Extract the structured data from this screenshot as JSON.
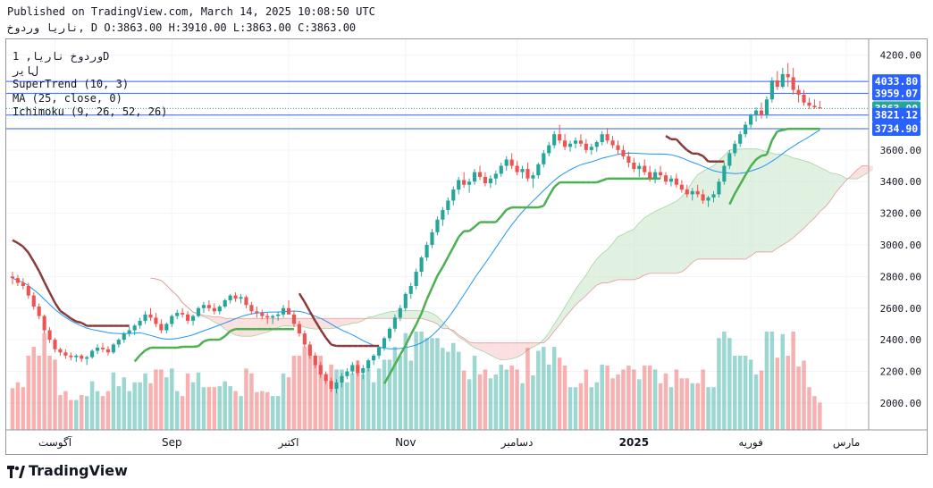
{
  "header": {
    "published": "Published on TradingView.com, March 14, 2025 10:08:50 UTC",
    "symbol_line": "ناریا  وردوخ, D O:3863.00 H:3910.00 L:3863.00 C:3863.00"
  },
  "legend": {
    "title": "وردوخ ناریا, 1D",
    "currency": "ﻝﺎﯾﺭ",
    "supertrend": "SuperTrend (10, 3)",
    "ma": "MA (25, close, 0)",
    "ichimoku": "Ichimoku (9, 26, 52, 26)"
  },
  "footer": {
    "brand": "TradingView"
  },
  "colors": {
    "up": "#26a69a",
    "down": "#ef5350",
    "supertrend_up": "#4caf50",
    "supertrend_down": "#8b3a3a",
    "ma": "#2196f3",
    "cloud_bull": "#c8e6c9",
    "cloud_bear": "#f8c7c7",
    "hline": "#2962ff"
  },
  "chart_data": {
    "type": "candlestick",
    "ylim": [
      1830,
      4300
    ],
    "y_ticks": [
      "2000.00",
      "2200.00",
      "2400.00",
      "2600.00",
      "2800.00",
      "3000.00",
      "3200.00",
      "3400.00",
      "3600.00",
      "3800.00",
      "4000.00",
      "4200.00"
    ],
    "x_labels": [
      {
        "label": "آگوست",
        "i": 8
      },
      {
        "label": "Sep",
        "i": 30
      },
      {
        "label": "اکتبر",
        "i": 52
      },
      {
        "label": "Nov",
        "i": 74
      },
      {
        "label": "دسامبر",
        "i": 95
      },
      {
        "label": "2025",
        "i": 117
      },
      {
        "label": "فوریه",
        "i": 139
      },
      {
        "label": "مارس",
        "i": 157
      }
    ],
    "price_labels": [
      {
        "value": 4033.8,
        "text": "4033.80",
        "bg": "#2962ff",
        "color": "#ffffff"
      },
      {
        "value": 3959.07,
        "text": "3959.07",
        "bg": "#2962ff",
        "color": "#ffffff"
      },
      {
        "value": 3863.0,
        "text": "3863.00",
        "bg": "#26a69a",
        "color": "#ffffff"
      },
      {
        "value": 3821.12,
        "text": "3821.12",
        "bg": "#2962ff",
        "color": "#ffffff"
      },
      {
        "value": 3734.9,
        "text": "3734.90",
        "bg": "#2962ff",
        "color": "#ffffff"
      }
    ],
    "hlines": [
      4033.8,
      3959.07,
      3821.12,
      3734.9
    ],
    "last_close": 3863.0,
    "candles": [
      [
        2800,
        2830,
        2750,
        2790
      ],
      [
        2790,
        2810,
        2740,
        2760
      ],
      [
        2760,
        2790,
        2720,
        2740
      ],
      [
        2740,
        2760,
        2660,
        2680
      ],
      [
        2680,
        2700,
        2590,
        2610
      ],
      [
        2610,
        2630,
        2530,
        2550
      ],
      [
        2550,
        2560,
        2440,
        2460
      ],
      [
        2460,
        2480,
        2380,
        2400
      ],
      [
        2400,
        2410,
        2320,
        2340
      ],
      [
        2340,
        2350,
        2300,
        2320
      ],
      [
        2320,
        2340,
        2280,
        2300
      ],
      [
        2300,
        2320,
        2270,
        2290
      ],
      [
        2290,
        2310,
        2260,
        2300
      ],
      [
        2300,
        2310,
        2260,
        2280
      ],
      [
        2280,
        2300,
        2240,
        2290
      ],
      [
        2290,
        2340,
        2280,
        2330
      ],
      [
        2330,
        2370,
        2310,
        2350
      ],
      [
        2350,
        2380,
        2320,
        2340
      ],
      [
        2340,
        2360,
        2300,
        2320
      ],
      [
        2320,
        2380,
        2310,
        2370
      ],
      [
        2370,
        2410,
        2350,
        2400
      ],
      [
        2400,
        2450,
        2380,
        2440
      ],
      [
        2440,
        2480,
        2420,
        2460
      ],
      [
        2460,
        2500,
        2430,
        2490
      ],
      [
        2490,
        2540,
        2470,
        2520
      ],
      [
        2520,
        2580,
        2500,
        2560
      ],
      [
        2560,
        2600,
        2520,
        2540
      ],
      [
        2540,
        2570,
        2480,
        2500
      ],
      [
        2500,
        2530,
        2440,
        2460
      ],
      [
        2460,
        2510,
        2440,
        2500
      ],
      [
        2500,
        2560,
        2480,
        2550
      ],
      [
        2550,
        2590,
        2530,
        2570
      ],
      [
        2570,
        2600,
        2540,
        2560
      ],
      [
        2560,
        2580,
        2500,
        2520
      ],
      [
        2520,
        2560,
        2490,
        2550
      ],
      [
        2550,
        2610,
        2540,
        2600
      ],
      [
        2600,
        2640,
        2570,
        2620
      ],
      [
        2620,
        2650,
        2580,
        2600
      ],
      [
        2600,
        2630,
        2560,
        2580
      ],
      [
        2580,
        2620,
        2560,
        2610
      ],
      [
        2610,
        2660,
        2600,
        2650
      ],
      [
        2650,
        2690,
        2630,
        2680
      ],
      [
        2680,
        2700,
        2640,
        2660
      ],
      [
        2660,
        2690,
        2630,
        2670
      ],
      [
        2670,
        2680,
        2600,
        2620
      ],
      [
        2620,
        2640,
        2560,
        2580
      ],
      [
        2580,
        2610,
        2540,
        2570
      ],
      [
        2570,
        2590,
        2530,
        2550
      ],
      [
        2550,
        2570,
        2500,
        2540
      ],
      [
        2540,
        2560,
        2500,
        2550
      ],
      [
        2550,
        2580,
        2520,
        2560
      ],
      [
        2560,
        2620,
        2540,
        2600
      ],
      [
        2600,
        2650,
        2580,
        2560
      ],
      [
        2560,
        2580,
        2480,
        2500
      ],
      [
        2500,
        2520,
        2420,
        2440
      ],
      [
        2440,
        2460,
        2350,
        2370
      ],
      [
        2370,
        2390,
        2280,
        2300
      ],
      [
        2300,
        2320,
        2220,
        2240
      ],
      [
        2240,
        2260,
        2160,
        2180
      ],
      [
        2180,
        2200,
        2120,
        2140
      ],
      [
        2140,
        2160,
        2070,
        2090
      ],
      [
        2090,
        2150,
        2060,
        2130
      ],
      [
        2130,
        2190,
        2100,
        2170
      ],
      [
        2170,
        2220,
        2150,
        2200
      ],
      [
        2200,
        2260,
        2180,
        2240
      ],
      [
        2240,
        2270,
        2170,
        2190
      ],
      [
        2190,
        2240,
        2150,
        2220
      ],
      [
        2220,
        2280,
        2200,
        2270
      ],
      [
        2270,
        2310,
        2240,
        2300
      ],
      [
        2300,
        2360,
        2280,
        2350
      ],
      [
        2350,
        2420,
        2330,
        2410
      ],
      [
        2410,
        2480,
        2390,
        2470
      ],
      [
        2470,
        2560,
        2450,
        2540
      ],
      [
        2540,
        2620,
        2520,
        2600
      ],
      [
        2600,
        2700,
        2580,
        2690
      ],
      [
        2690,
        2760,
        2660,
        2740
      ],
      [
        2740,
        2850,
        2720,
        2830
      ],
      [
        2830,
        2930,
        2800,
        2920
      ],
      [
        2920,
        3020,
        2900,
        3000
      ],
      [
        3000,
        3100,
        2980,
        3080
      ],
      [
        3080,
        3180,
        3060,
        3160
      ],
      [
        3160,
        3240,
        3120,
        3220
      ],
      [
        3220,
        3300,
        3190,
        3280
      ],
      [
        3280,
        3370,
        3250,
        3350
      ],
      [
        3350,
        3430,
        3320,
        3410
      ],
      [
        3410,
        3460,
        3360,
        3380
      ],
      [
        3380,
        3420,
        3330,
        3400
      ],
      [
        3400,
        3480,
        3380,
        3460
      ],
      [
        3460,
        3500,
        3410,
        3430
      ],
      [
        3430,
        3460,
        3370,
        3390
      ],
      [
        3390,
        3440,
        3360,
        3420
      ],
      [
        3420,
        3470,
        3380,
        3450
      ],
      [
        3450,
        3520,
        3430,
        3500
      ],
      [
        3500,
        3560,
        3470,
        3540
      ],
      [
        3540,
        3580,
        3480,
        3500
      ],
      [
        3500,
        3530,
        3440,
        3460
      ],
      [
        3460,
        3500,
        3420,
        3480
      ],
      [
        3480,
        3520,
        3400,
        3420
      ],
      [
        3420,
        3460,
        3360,
        3440
      ],
      [
        3440,
        3520,
        3420,
        3510
      ],
      [
        3510,
        3600,
        3490,
        3580
      ],
      [
        3580,
        3650,
        3560,
        3630
      ],
      [
        3630,
        3720,
        3610,
        3700
      ],
      [
        3700,
        3760,
        3640,
        3660
      ],
      [
        3660,
        3700,
        3600,
        3620
      ],
      [
        3620,
        3660,
        3590,
        3640
      ],
      [
        3640,
        3680,
        3610,
        3660
      ],
      [
        3660,
        3700,
        3620,
        3640
      ],
      [
        3640,
        3670,
        3580,
        3600
      ],
      [
        3600,
        3640,
        3570,
        3620
      ],
      [
        3620,
        3660,
        3590,
        3650
      ],
      [
        3650,
        3720,
        3630,
        3700
      ],
      [
        3700,
        3740,
        3640,
        3660
      ],
      [
        3660,
        3690,
        3610,
        3630
      ],
      [
        3630,
        3660,
        3570,
        3600
      ],
      [
        3600,
        3630,
        3540,
        3560
      ],
      [
        3560,
        3590,
        3490,
        3520
      ],
      [
        3520,
        3550,
        3460,
        3480
      ],
      [
        3480,
        3520,
        3430,
        3500
      ],
      [
        3500,
        3540,
        3440,
        3460
      ],
      [
        3460,
        3500,
        3400,
        3420
      ],
      [
        3420,
        3480,
        3390,
        3460
      ],
      [
        3460,
        3500,
        3420,
        3440
      ],
      [
        3440,
        3460,
        3380,
        3400
      ],
      [
        3400,
        3440,
        3370,
        3420
      ],
      [
        3420,
        3450,
        3360,
        3380
      ],
      [
        3380,
        3410,
        3330,
        3350
      ],
      [
        3350,
        3380,
        3300,
        3320
      ],
      [
        3320,
        3360,
        3280,
        3340
      ],
      [
        3340,
        3380,
        3300,
        3320
      ],
      [
        3320,
        3350,
        3260,
        3280
      ],
      [
        3280,
        3310,
        3240,
        3300
      ],
      [
        3300,
        3340,
        3270,
        3320
      ],
      [
        3320,
        3420,
        3300,
        3400
      ],
      [
        3400,
        3520,
        3380,
        3500
      ],
      [
        3500,
        3600,
        3480,
        3580
      ],
      [
        3580,
        3660,
        3560,
        3640
      ],
      [
        3640,
        3720,
        3620,
        3700
      ],
      [
        3700,
        3780,
        3680,
        3760
      ],
      [
        3760,
        3830,
        3740,
        3820
      ],
      [
        3820,
        3870,
        3780,
        3850
      ],
      [
        3850,
        3900,
        3800,
        3820
      ],
      [
        3820,
        3940,
        3800,
        3920
      ],
      [
        3920,
        4060,
        3900,
        4040
      ],
      [
        4040,
        4100,
        3980,
        4000
      ],
      [
        4000,
        4120,
        3990,
        4080
      ],
      [
        4080,
        4150,
        4000,
        4060
      ],
      [
        4060,
        4120,
        3950,
        3980
      ],
      [
        3980,
        4010,
        3900,
        3950
      ],
      [
        3950,
        3980,
        3880,
        3900
      ],
      [
        3900,
        3930,
        3860,
        3880
      ],
      [
        3880,
        3920,
        3860,
        3870
      ],
      [
        3870,
        3910,
        3863,
        3863
      ]
    ]
  }
}
